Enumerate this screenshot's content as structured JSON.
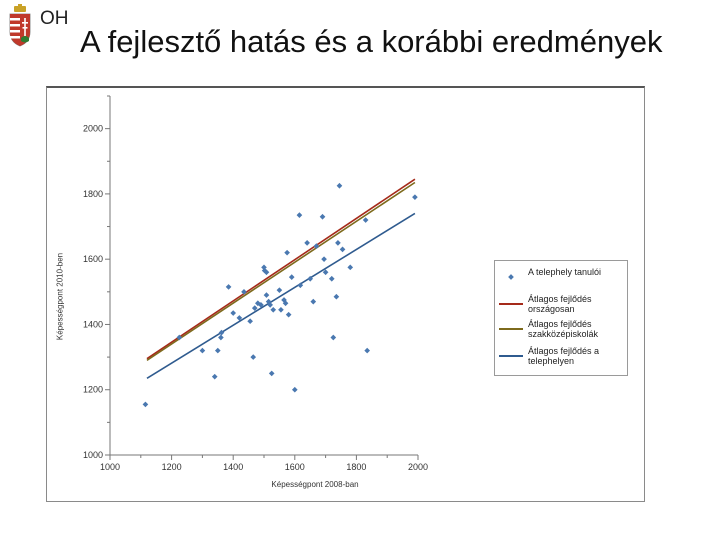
{
  "header": {
    "org": "OH",
    "title": "A fejlesztő hatás és a korábbi eredmények"
  },
  "colors": {
    "points": "#4a78b0",
    "orszagosan": "#a52a1a",
    "szakkozepiskolak": "#7d6a1c",
    "telephelyen": "#2f5b8f"
  },
  "chart_data": {
    "type": "scatter",
    "xlabel": "Képességpont 2008-ban",
    "ylabel": "Képességpont 2010-ben",
    "xlim": [
      1000,
      2000
    ],
    "ylim": [
      1000,
      2100
    ],
    "xticks": [
      "1000",
      "1200",
      "1400",
      "1600",
      "1800",
      "2000"
    ],
    "yticks": [
      "1000",
      "1200",
      "1400",
      "1600",
      "1800",
      "2000"
    ],
    "grid": false,
    "legend_position": "right",
    "series": [
      {
        "name": "A telephely tanulói",
        "kind": "points",
        "points": [
          [
            1115,
            1155
          ],
          [
            1225,
            1360
          ],
          [
            1300,
            1320
          ],
          [
            1340,
            1240
          ],
          [
            1350,
            1320
          ],
          [
            1360,
            1360
          ],
          [
            1362,
            1375
          ],
          [
            1385,
            1515
          ],
          [
            1400,
            1435
          ],
          [
            1420,
            1420
          ],
          [
            1435,
            1500
          ],
          [
            1455,
            1410
          ],
          [
            1465,
            1300
          ],
          [
            1470,
            1450
          ],
          [
            1480,
            1465
          ],
          [
            1490,
            1460
          ],
          [
            1500,
            1575
          ],
          [
            1502,
            1565
          ],
          [
            1508,
            1560
          ],
          [
            1508,
            1490
          ],
          [
            1515,
            1470
          ],
          [
            1520,
            1460
          ],
          [
            1525,
            1250
          ],
          [
            1530,
            1445
          ],
          [
            1550,
            1505
          ],
          [
            1555,
            1445
          ],
          [
            1565,
            1475
          ],
          [
            1570,
            1465
          ],
          [
            1575,
            1620
          ],
          [
            1580,
            1430
          ],
          [
            1590,
            1545
          ],
          [
            1600,
            1200
          ],
          [
            1615,
            1735
          ],
          [
            1618,
            1520
          ],
          [
            1640,
            1650
          ],
          [
            1650,
            1540
          ],
          [
            1660,
            1470
          ],
          [
            1670,
            1640
          ],
          [
            1690,
            1730
          ],
          [
            1695,
            1600
          ],
          [
            1700,
            1560
          ],
          [
            1720,
            1540
          ],
          [
            1725,
            1360
          ],
          [
            1735,
            1485
          ],
          [
            1740,
            1650
          ],
          [
            1745,
            1825
          ],
          [
            1755,
            1630
          ],
          [
            1780,
            1575
          ],
          [
            1830,
            1720
          ],
          [
            1835,
            1320
          ],
          [
            1990,
            1790
          ]
        ]
      },
      {
        "name": "Átlagos fejlődés országosan",
        "kind": "line",
        "points": [
          [
            1120,
            1295
          ],
          [
            1990,
            1845
          ]
        ]
      },
      {
        "name": "Átlagos fejlődés szakközépiskolák",
        "kind": "line",
        "points": [
          [
            1120,
            1290
          ],
          [
            1990,
            1835
          ]
        ]
      },
      {
        "name": "Átlagos fejlődés a telephelyen",
        "kind": "line",
        "points": [
          [
            1120,
            1235
          ],
          [
            1990,
            1740
          ]
        ]
      }
    ]
  },
  "legend": [
    {
      "label": "A telephely tanulói",
      "symbol": "point",
      "color_key": "points"
    },
    {
      "label": "Átlagos fejlődés országosan",
      "symbol": "line",
      "color_key": "orszagosan"
    },
    {
      "label": "Átlagos fejlődés szakközépiskolák",
      "symbol": "line",
      "color_key": "szakkozepiskolak"
    },
    {
      "label": "Átlagos fejlődés a telephelyen",
      "symbol": "line",
      "color_key": "telephelyen"
    }
  ]
}
